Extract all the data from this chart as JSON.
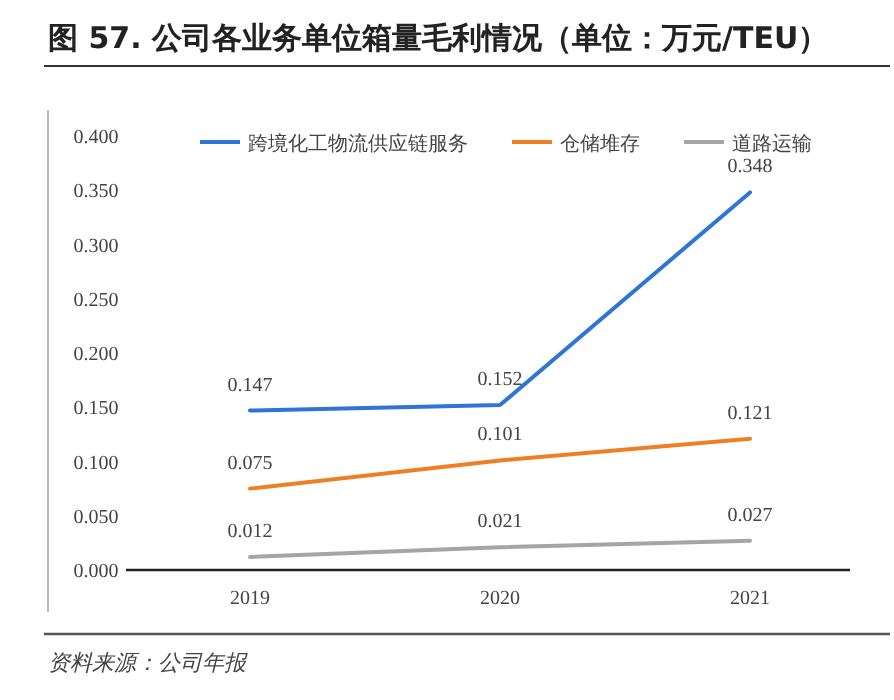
{
  "chart_data": {
    "type": "line",
    "title": "图 57. 公司各业务单位箱量毛利情况（单位：万元/TEU）",
    "categories": [
      "2019",
      "2020",
      "2021"
    ],
    "series": [
      {
        "name": "跨境化工物流供应链服务",
        "color": "#2e75d6",
        "values": [
          0.147,
          0.152,
          0.348
        ]
      },
      {
        "name": "仓储堆存",
        "color": "#f07f23",
        "values": [
          0.075,
          0.101,
          0.121
        ]
      },
      {
        "name": "道路运输",
        "color": "#a5a5a5",
        "values": [
          0.012,
          0.021,
          0.027
        ]
      }
    ],
    "ylim": [
      0,
      0.4
    ],
    "yticks": [
      {
        "value": 0,
        "label": "0.000"
      },
      {
        "value": 0.05,
        "label": "0.050"
      },
      {
        "value": 0.1,
        "label": "0.100"
      },
      {
        "value": 0.15,
        "label": "0.150"
      },
      {
        "value": 0.2,
        "label": "0.200"
      },
      {
        "value": 0.25,
        "label": "0.250"
      },
      {
        "value": 0.3,
        "label": "0.300"
      },
      {
        "value": 0.35,
        "label": "0.350"
      },
      {
        "value": 0.4,
        "label": "0.400"
      }
    ],
    "data_labels": true,
    "legend": "top",
    "grid": false,
    "marker": "none",
    "line_style": "solid",
    "annotations": [
      "资料来源：公司年报"
    ]
  }
}
